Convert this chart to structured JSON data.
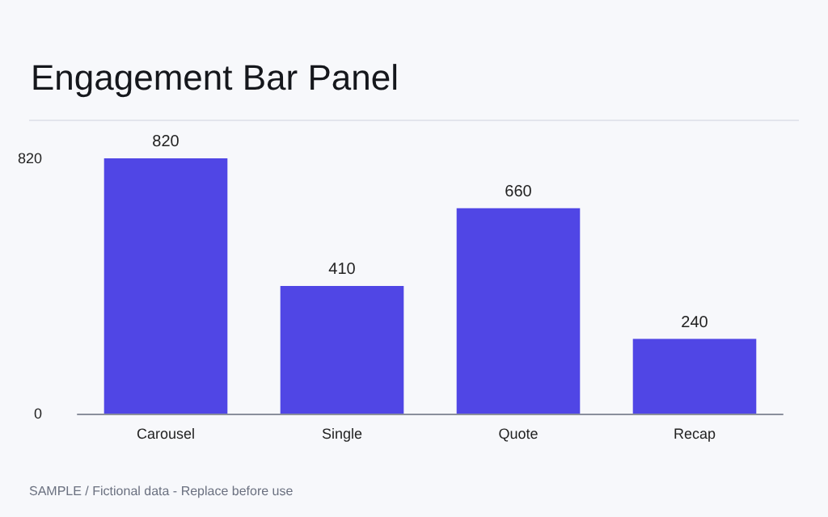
{
  "chart_data": {
    "type": "bar",
    "title": "Engagement Bar Panel",
    "categories": [
      "Carousel",
      "Single",
      "Quote",
      "Recap"
    ],
    "values": [
      820,
      410,
      660,
      240
    ],
    "color": "#5046e5",
    "ylim": [
      0,
      820
    ],
    "yticks": [
      0,
      820
    ],
    "grid": false,
    "data_labels": true,
    "annotations": [
      "SAMPLE / Fictional data - Replace before use"
    ]
  }
}
